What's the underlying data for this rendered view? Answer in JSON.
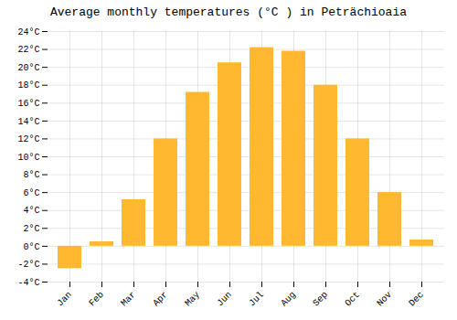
{
  "chart_data": {
    "type": "bar",
    "title": "Average monthly temperatures (°C ) in Peträchioaia",
    "categories": [
      "Jan",
      "Feb",
      "Mar",
      "Apr",
      "May",
      "Jun",
      "Jul",
      "Aug",
      "Sep",
      "Oct",
      "Nov",
      "Dec"
    ],
    "values": [
      -2.5,
      0.5,
      5.2,
      12.0,
      17.2,
      20.5,
      22.2,
      21.8,
      18.0,
      12.0,
      6.0,
      0.7
    ],
    "color": "#FFB830",
    "ylim": [
      -4,
      24
    ],
    "yticks": [
      {
        "value": -4,
        "label": "-4°C"
      },
      {
        "value": -2,
        "label": "-2°C"
      },
      {
        "value": 0,
        "label": "0°C"
      },
      {
        "value": 2,
        "label": "2°C"
      },
      {
        "value": 4,
        "label": "4°C"
      },
      {
        "value": 6,
        "label": "6°C"
      },
      {
        "value": 8,
        "label": "8°C"
      },
      {
        "value": 10,
        "label": "10°C"
      },
      {
        "value": 12,
        "label": "12°C"
      },
      {
        "value": 14,
        "label": "14°C"
      },
      {
        "value": 16,
        "label": "16°C"
      },
      {
        "value": 18,
        "label": "18°C"
      },
      {
        "value": 20,
        "label": "20°C"
      },
      {
        "value": 22,
        "label": "22°C"
      },
      {
        "value": 24,
        "label": "24°C"
      }
    ],
    "grid": true
  }
}
